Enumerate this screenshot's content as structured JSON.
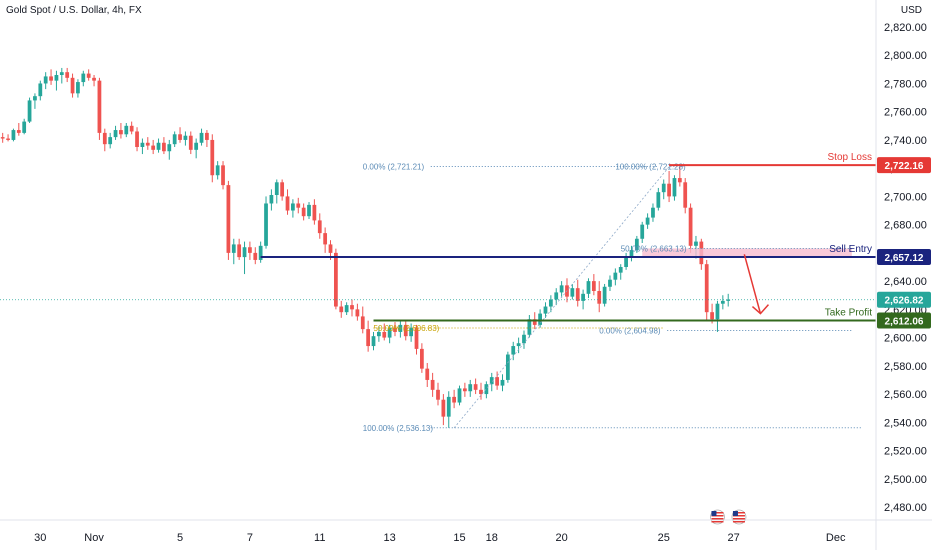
{
  "header": {
    "title": "Gold Spot / U.S. Dollar, 4h, FX",
    "currency": "USD"
  },
  "colors": {
    "up": "#26a69a",
    "down": "#ef5350",
    "stop": "#e53935",
    "entry": "#1a237e",
    "tp": "#33691e",
    "fib": "#5b8bb6",
    "fib_gold": "#c8a200",
    "zone": "#f8bbd0",
    "price": "#26a69a"
  },
  "chart_data": {
    "type": "candlestick",
    "ylim": [
      2470,
      2835
    ],
    "yticks": [
      2480,
      2500,
      2520,
      2540,
      2560,
      2580,
      2600,
      2620,
      2640,
      2660,
      2680,
      2700,
      2720,
      2740,
      2760,
      2780,
      2800,
      2820
    ],
    "ytick_labels": [
      "2,480.00",
      "2,500.00",
      "2,520.00",
      "2,540.00",
      "2,560.00",
      "2,580.00",
      "2,600.00",
      "2,620.00",
      "2,640.00",
      "2,660.00",
      "2,680.00",
      "2,700.00",
      "2,720.00",
      "2,740.00",
      "2,760.00",
      "2,780.00",
      "2,800.00",
      "2,820.00"
    ],
    "xticks": [
      {
        "label": "30",
        "bar": 7
      },
      {
        "label": "Nov",
        "bar": 17
      },
      {
        "label": "5",
        "bar": 33
      },
      {
        "label": "7",
        "bar": 46
      },
      {
        "label": "11",
        "bar": 59
      },
      {
        "label": "13",
        "bar": 72
      },
      {
        "label": "15",
        "bar": 85
      },
      {
        "label": "18",
        "bar": 91
      },
      {
        "label": "20",
        "bar": 104
      },
      {
        "label": "25",
        "bar": 123
      },
      {
        "label": "27",
        "bar": 136
      },
      {
        "label": "Dec",
        "bar": 155
      }
    ],
    "bars_total": 163,
    "candles": [
      [
        2742,
        2745,
        2738,
        2741
      ],
      [
        2741,
        2744,
        2739,
        2740
      ],
      [
        2740,
        2748,
        2739,
        2747
      ],
      [
        2747,
        2752,
        2743,
        2745
      ],
      [
        2745,
        2755,
        2744,
        2753
      ],
      [
        2753,
        2770,
        2752,
        2768
      ],
      [
        2768,
        2773,
        2762,
        2771
      ],
      [
        2771,
        2782,
        2768,
        2780
      ],
      [
        2780,
        2788,
        2776,
        2785
      ],
      [
        2785,
        2790,
        2779,
        2782
      ],
      [
        2782,
        2789,
        2775,
        2786
      ],
      [
        2786,
        2791,
        2780,
        2788
      ],
      [
        2788,
        2791,
        2781,
        2784
      ],
      [
        2784,
        2787,
        2770,
        2773
      ],
      [
        2773,
        2783,
        2770,
        2781
      ],
      [
        2781,
        2789,
        2778,
        2787
      ],
      [
        2787,
        2790,
        2782,
        2784
      ],
      [
        2784,
        2786,
        2778,
        2782
      ],
      [
        2782,
        2784,
        2740,
        2745
      ],
      [
        2745,
        2748,
        2732,
        2737
      ],
      [
        2737,
        2745,
        2734,
        2742
      ],
      [
        2742,
        2750,
        2740,
        2747
      ],
      [
        2747,
        2752,
        2741,
        2744
      ],
      [
        2744,
        2752,
        2742,
        2750
      ],
      [
        2750,
        2753,
        2744,
        2746
      ],
      [
        2746,
        2749,
        2732,
        2735
      ],
      [
        2735,
        2741,
        2730,
        2738
      ],
      [
        2738,
        2742,
        2733,
        2736
      ],
      [
        2736,
        2740,
        2730,
        2733
      ],
      [
        2733,
        2741,
        2731,
        2738
      ],
      [
        2738,
        2742,
        2730,
        2732
      ],
      [
        2732,
        2740,
        2726,
        2737
      ],
      [
        2737,
        2746,
        2735,
        2744
      ],
      [
        2744,
        2749,
        2738,
        2740
      ],
      [
        2740,
        2746,
        2736,
        2743
      ],
      [
        2743,
        2746,
        2730,
        2733
      ],
      [
        2733,
        2741,
        2727,
        2738
      ],
      [
        2738,
        2748,
        2736,
        2745
      ],
      [
        2745,
        2747,
        2735,
        2740
      ],
      [
        2740,
        2744,
        2710,
        2715
      ],
      [
        2715,
        2725,
        2712,
        2722
      ],
      [
        2722,
        2725,
        2705,
        2708
      ],
      [
        2708,
        2711,
        2655,
        2660
      ],
      [
        2660,
        2670,
        2652,
        2666
      ],
      [
        2666,
        2670,
        2655,
        2657
      ],
      [
        2657,
        2668,
        2645,
        2664
      ],
      [
        2664,
        2668,
        2655,
        2660
      ],
      [
        2660,
        2664,
        2652,
        2655
      ],
      [
        2655,
        2668,
        2653,
        2665
      ],
      [
        2665,
        2700,
        2663,
        2695
      ],
      [
        2695,
        2705,
        2690,
        2701
      ],
      [
        2701,
        2712,
        2695,
        2710
      ],
      [
        2710,
        2712,
        2697,
        2700
      ],
      [
        2700,
        2705,
        2687,
        2690
      ],
      [
        2690,
        2698,
        2685,
        2695
      ],
      [
        2695,
        2699,
        2688,
        2692
      ],
      [
        2692,
        2695,
        2683,
        2686
      ],
      [
        2686,
        2696,
        2684,
        2694
      ],
      [
        2694,
        2698,
        2680,
        2683
      ],
      [
        2683,
        2688,
        2670,
        2674
      ],
      [
        2674,
        2678,
        2660,
        2666
      ],
      [
        2666,
        2669,
        2655,
        2660
      ],
      [
        2660,
        2663,
        2620,
        2622
      ],
      [
        2622,
        2626,
        2614,
        2618
      ],
      [
        2618,
        2625,
        2616,
        2623
      ],
      [
        2623,
        2627,
        2615,
        2620
      ],
      [
        2620,
        2624,
        2612,
        2615
      ],
      [
        2615,
        2622,
        2603,
        2606
      ],
      [
        2606,
        2612,
        2590,
        2594
      ],
      [
        2594,
        2604,
        2591,
        2601
      ],
      [
        2601,
        2608,
        2597,
        2604
      ],
      [
        2604,
        2610,
        2598,
        2600
      ],
      [
        2600,
        2609,
        2596,
        2607
      ],
      [
        2607,
        2611,
        2601,
        2604
      ],
      [
        2604,
        2612,
        2600,
        2609
      ],
      [
        2609,
        2612,
        2598,
        2601
      ],
      [
        2601,
        2610,
        2597,
        2607
      ],
      [
        2607,
        2609,
        2588,
        2592
      ],
      [
        2592,
        2596,
        2575,
        2578
      ],
      [
        2578,
        2582,
        2565,
        2570
      ],
      [
        2570,
        2575,
        2558,
        2563
      ],
      [
        2563,
        2568,
        2552,
        2556
      ],
      [
        2556,
        2560,
        2538,
        2544
      ],
      [
        2544,
        2562,
        2536,
        2558
      ],
      [
        2558,
        2563,
        2550,
        2554
      ],
      [
        2554,
        2566,
        2552,
        2564
      ],
      [
        2564,
        2568,
        2558,
        2562
      ],
      [
        2562,
        2570,
        2558,
        2567
      ],
      [
        2567,
        2571,
        2560,
        2563
      ],
      [
        2563,
        2568,
        2556,
        2560
      ],
      [
        2560,
        2569,
        2557,
        2567
      ],
      [
        2567,
        2575,
        2562,
        2572
      ],
      [
        2572,
        2576,
        2563,
        2566
      ],
      [
        2566,
        2574,
        2562,
        2570
      ],
      [
        2570,
        2590,
        2568,
        2588
      ],
      [
        2588,
        2597,
        2584,
        2594
      ],
      [
        2594,
        2600,
        2589,
        2596
      ],
      [
        2596,
        2605,
        2592,
        2602
      ],
      [
        2602,
        2616,
        2600,
        2613
      ],
      [
        2613,
        2618,
        2606,
        2609
      ],
      [
        2609,
        2620,
        2607,
        2617
      ],
      [
        2617,
        2625,
        2614,
        2622
      ],
      [
        2622,
        2630,
        2618,
        2627
      ],
      [
        2627,
        2635,
        2623,
        2632
      ],
      [
        2632,
        2640,
        2629,
        2637
      ],
      [
        2637,
        2642,
        2625,
        2629
      ],
      [
        2629,
        2638,
        2627,
        2635
      ],
      [
        2635,
        2641,
        2622,
        2626
      ],
      [
        2626,
        2634,
        2620,
        2631
      ],
      [
        2631,
        2642,
        2628,
        2640
      ],
      [
        2640,
        2645,
        2630,
        2633
      ],
      [
        2633,
        2640,
        2618,
        2624
      ],
      [
        2624,
        2638,
        2622,
        2636
      ],
      [
        2636,
        2644,
        2633,
        2641
      ],
      [
        2641,
        2649,
        2637,
        2646
      ],
      [
        2646,
        2652,
        2641,
        2650
      ],
      [
        2650,
        2660,
        2648,
        2657
      ],
      [
        2657,
        2665,
        2654,
        2662
      ],
      [
        2662,
        2672,
        2660,
        2670
      ],
      [
        2670,
        2682,
        2667,
        2680
      ],
      [
        2680,
        2688,
        2677,
        2685
      ],
      [
        2685,
        2695,
        2682,
        2692
      ],
      [
        2692,
        2706,
        2690,
        2703
      ],
      [
        2703,
        2712,
        2698,
        2709
      ],
      [
        2709,
        2718,
        2696,
        2700
      ],
      [
        2700,
        2715,
        2697,
        2713
      ],
      [
        2713,
        2721,
        2707,
        2710
      ],
      [
        2710,
        2713,
        2688,
        2692
      ],
      [
        2692,
        2695,
        2660,
        2665
      ],
      [
        2665,
        2672,
        2656,
        2668
      ],
      [
        2668,
        2670,
        2648,
        2652
      ],
      [
        2652,
        2655,
        2612,
        2618
      ],
      [
        2618,
        2624,
        2610,
        2613
      ],
      [
        2613,
        2626,
        2604,
        2624
      ],
      [
        2624,
        2630,
        2620,
        2626
      ],
      [
        2626,
        2631,
        2622,
        2627
      ]
    ],
    "levels": [
      {
        "name": "stop-loss",
        "label": "Stop Loss",
        "value": 2722.16,
        "badge": "2,722.16",
        "color": "stop",
        "from_bar": 124
      },
      {
        "name": "sell-entry",
        "label": "Sell Entry",
        "value": 2657.12,
        "badge": "2,657.12",
        "color": "entry",
        "from_bar": 48
      },
      {
        "name": "take-profit",
        "label": "Take Profit",
        "value": 2612.06,
        "badge": "2,612.06",
        "color": "tp",
        "from_bar": 69
      }
    ],
    "current_price": {
      "value": 2626.82,
      "badge": "2,626.82"
    },
    "fib_labels": [
      {
        "text": "0.00% (2,721.21)",
        "value": 2721.21,
        "bar": 67,
        "line_to": 122
      },
      {
        "text": "100.00% (2,721.28)",
        "value": 2721.28,
        "bar": 114,
        "line_to": 124
      },
      {
        "text": "50.00% (2,663.13)",
        "value": 2663.13,
        "bar": 115,
        "line_to": 158
      },
      {
        "text": "0.00% (2,604.98)",
        "value": 2604.98,
        "bar": 111,
        "line_to": 158
      },
      {
        "text": "100.00% (2,536.13)",
        "value": 2536.13,
        "bar": 67,
        "line_to": 160
      },
      {
        "text": "50.00% (2,606.83)",
        "value": 2606.83,
        "bar": 69,
        "line_to": 123
      }
    ],
    "pink_zone": {
      "from": 2657.12,
      "to": 2663.13,
      "from_bar": 119,
      "to_bar": 158
    },
    "arrow": {
      "from_bar": 138,
      "from_value": 2659,
      "to_bar": 141,
      "to_value": 2617
    },
    "flags": [
      {
        "bar": 133
      },
      {
        "bar": 137
      }
    ]
  }
}
